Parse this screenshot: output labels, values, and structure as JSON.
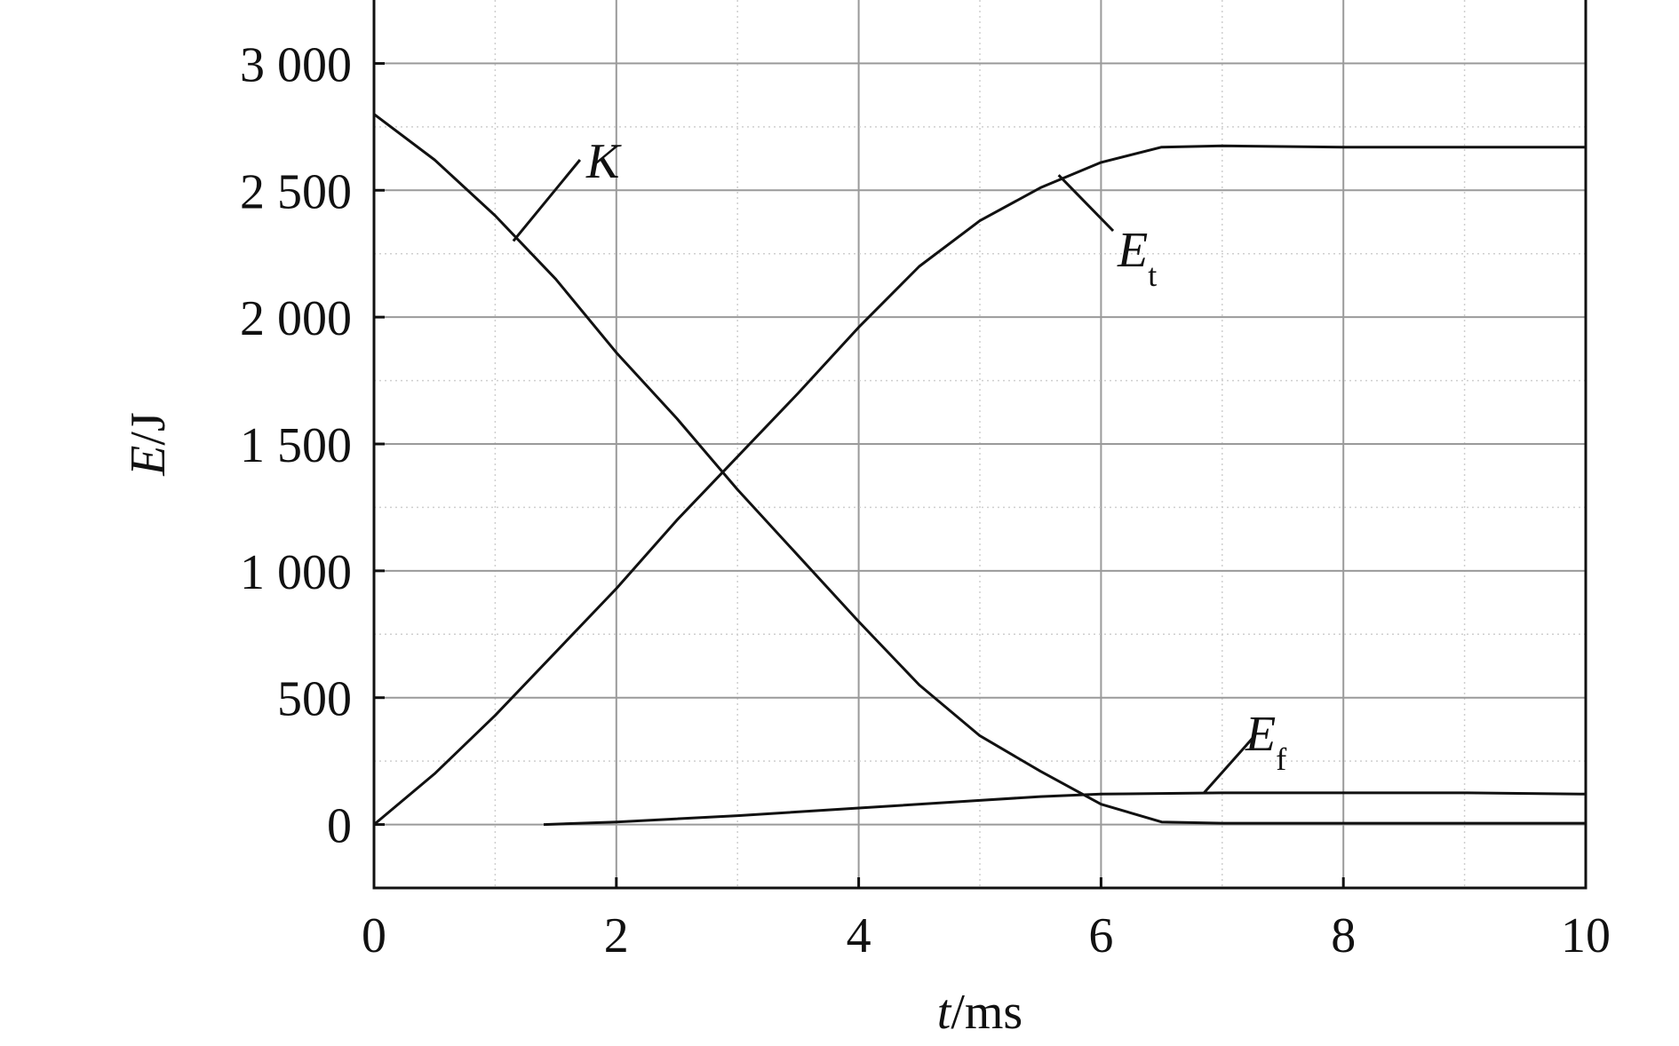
{
  "chart_data": {
    "type": "line",
    "xlabel": {
      "var": "t",
      "unit": "/ms"
    },
    "ylabel": {
      "var": "E",
      "unit": "/J"
    },
    "xlim": [
      0,
      10
    ],
    "ylim": [
      -250,
      3250
    ],
    "xticks": [
      0,
      2,
      4,
      6,
      8,
      10
    ],
    "xtick_labels": [
      "0",
      "2",
      "4",
      "6",
      "8",
      "10"
    ],
    "yticks": [
      0,
      500,
      1000,
      1500,
      2000,
      2500,
      3000
    ],
    "ytick_labels": [
      "0",
      "500",
      "1 000",
      "1 500",
      "2 000",
      "2 500",
      "3 000"
    ],
    "grid": true,
    "series": [
      {
        "name": "K",
        "label_main": "K",
        "label_sub": "",
        "x": [
          0,
          0.5,
          1.0,
          1.5,
          2.0,
          2.5,
          3.0,
          3.5,
          4.0,
          4.5,
          5.0,
          5.5,
          6.0,
          6.5,
          7.0,
          8.0,
          9.0,
          10.0
        ],
        "y": [
          2800,
          2620,
          2400,
          2150,
          1860,
          1600,
          1320,
          1060,
          800,
          550,
          350,
          210,
          80,
          10,
          5,
          5,
          5,
          5
        ]
      },
      {
        "name": "Et",
        "label_main": "E",
        "label_sub": "t",
        "x": [
          0,
          0.5,
          1.0,
          1.5,
          2.0,
          2.5,
          3.0,
          3.5,
          4.0,
          4.5,
          5.0,
          5.5,
          6.0,
          6.5,
          7.0,
          8.0,
          9.0,
          10.0
        ],
        "y": [
          0,
          200,
          430,
          680,
          930,
          1200,
          1450,
          1700,
          1960,
          2200,
          2380,
          2510,
          2610,
          2670,
          2675,
          2670,
          2670,
          2670
        ]
      },
      {
        "name": "Ef",
        "label_main": "E",
        "label_sub": "f",
        "x": [
          1.4,
          2.0,
          3.0,
          4.0,
          5.0,
          5.5,
          6.0,
          7.0,
          8.0,
          9.0,
          10.0
        ],
        "y": [
          0,
          10,
          35,
          65,
          95,
          110,
          120,
          125,
          125,
          125,
          120
        ]
      }
    ]
  },
  "colors": {
    "line": "#111111",
    "grid": "#9a9a9a",
    "axis": "#111111"
  }
}
